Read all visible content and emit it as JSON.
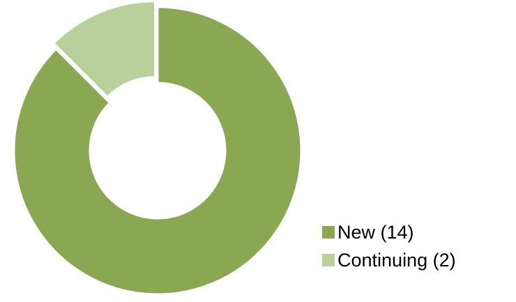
{
  "chart_data": {
    "type": "pie",
    "variant": "donut",
    "title": "",
    "series": [
      {
        "name": "New",
        "value": 14,
        "label": "New (14)",
        "color": "#8aa752"
      },
      {
        "name": "Continuing",
        "value": 2,
        "label": "Continuing (2)",
        "color": "#b9d09a"
      }
    ],
    "slice_edge_color": "#ffffff",
    "legend_position": "bottom-right"
  }
}
